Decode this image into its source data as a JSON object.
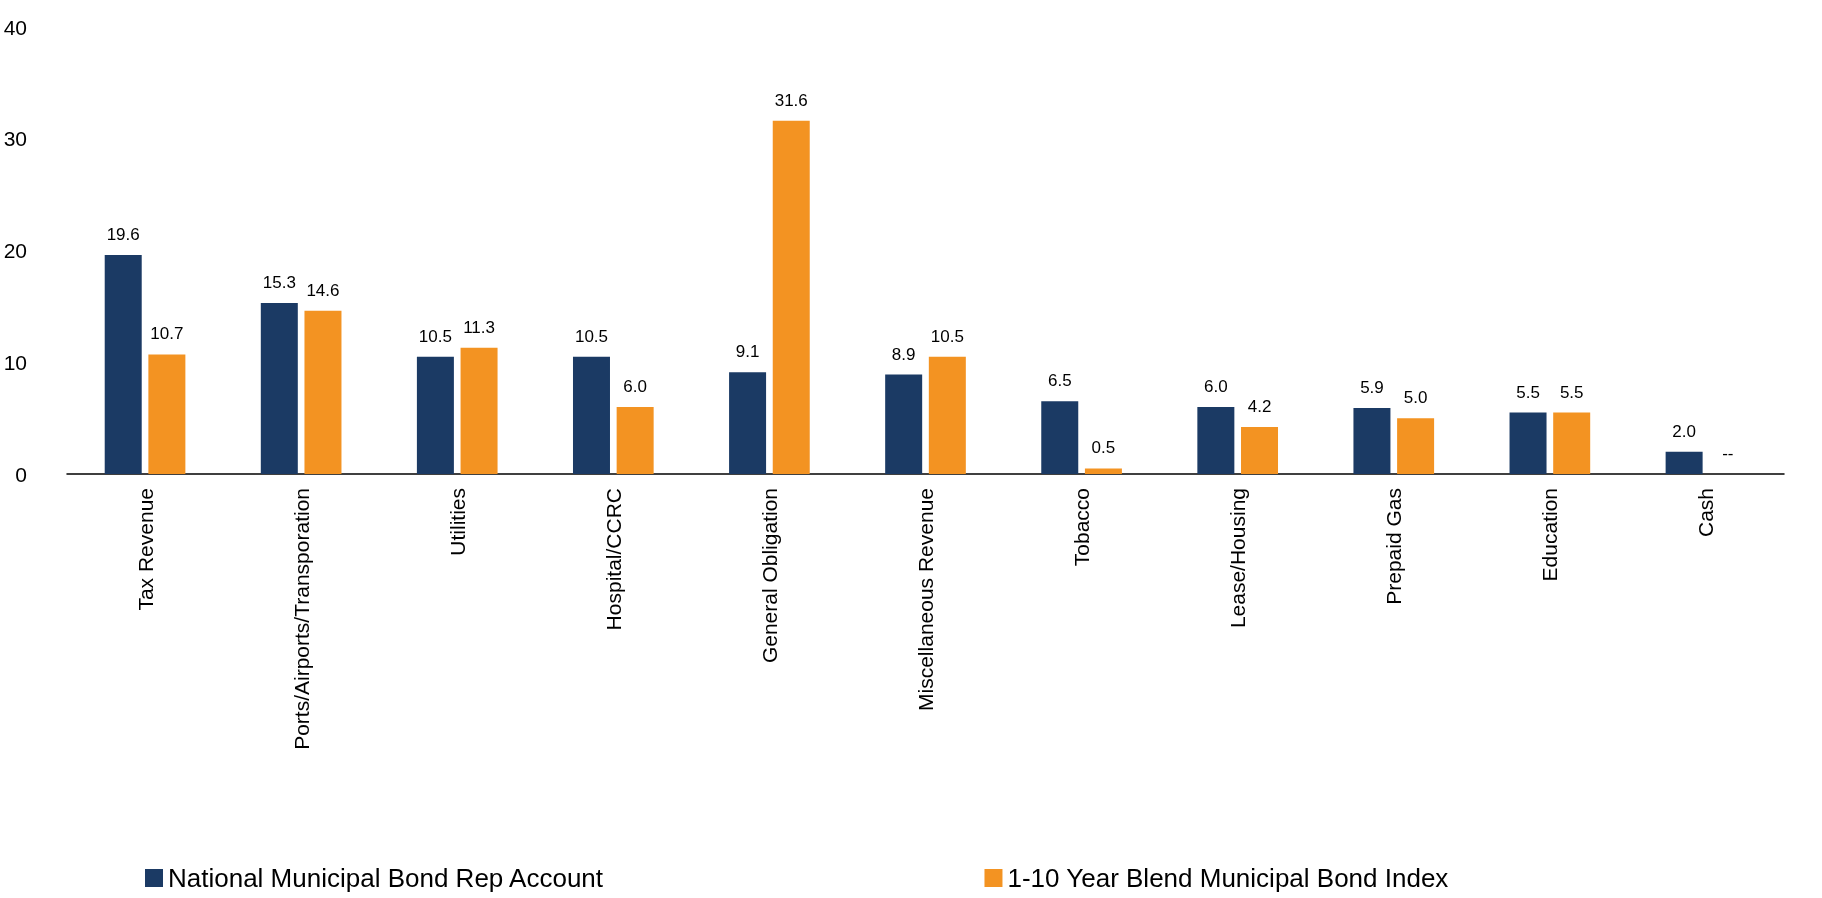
{
  "chart_data": {
    "type": "bar",
    "categories": [
      "Tax Revenue",
      "Ports/Airports/Transporation",
      "Utilities",
      "Hospital/CCRC",
      "General Obligation",
      "Miscellaneous Revenue",
      "Tobacco",
      "Lease/Housing",
      "Prepaid Gas",
      "Education",
      "Cash"
    ],
    "series": [
      {
        "name": "National Municipal Bond Rep Account",
        "color": "#1b3a64",
        "values": [
          19.6,
          15.3,
          10.5,
          10.5,
          9.1,
          8.9,
          6.5,
          6.0,
          5.9,
          5.5,
          2.0
        ],
        "value_labels": [
          "19.6",
          "15.3",
          "10.5",
          "10.5",
          "9.1",
          "8.9",
          "6.5",
          "6.0",
          "5.9",
          "5.5",
          "2.0"
        ]
      },
      {
        "name": "1-10 Year Blend Municipal Bond Index",
        "color": "#f39322",
        "values": [
          10.7,
          14.6,
          11.3,
          6.0,
          31.6,
          10.5,
          0.5,
          4.2,
          5.0,
          5.5,
          null
        ],
        "value_labels": [
          "10.7",
          "14.6",
          "11.3",
          "6.0",
          "31.6",
          "10.5",
          "0.5",
          "4.2",
          "5.0",
          "5.5",
          "--"
        ]
      }
    ],
    "ylim": [
      0,
      40
    ],
    "yticks": [
      0,
      10,
      20,
      30,
      40
    ],
    "grid": false,
    "legend": "bottom"
  }
}
